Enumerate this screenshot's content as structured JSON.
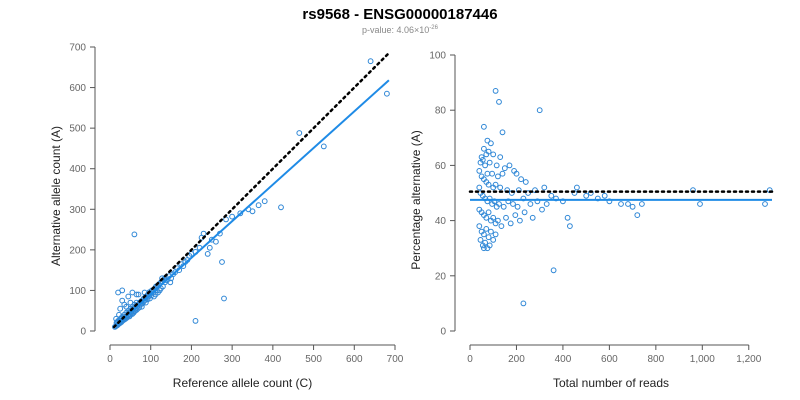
{
  "header": {
    "title": "rs9568 - ENSG00000187446",
    "pvalue_prefix": "p-value: 4.06×10",
    "pvalue_exponent": "-26"
  },
  "colors": {
    "points": "#2f87d6",
    "fit_line": "#1f8be6",
    "reference_line": "#000000"
  },
  "chart_data": [
    {
      "type": "scatter",
      "title": "",
      "xlabel": "Reference allele count (C)",
      "ylabel": "Alternative allele count (A)",
      "xlim": [
        0,
        700
      ],
      "ylim": [
        0,
        700
      ],
      "xticks": [
        0,
        100,
        200,
        300,
        400,
        500,
        600,
        700
      ],
      "yticks": [
        0,
        100,
        200,
        300,
        400,
        500,
        600,
        700
      ],
      "xtick_labels": [
        "0",
        "100",
        "200",
        "300",
        "400",
        "500",
        "600",
        "700"
      ],
      "ytick_labels": [
        "0",
        "100",
        "200",
        "300",
        "400",
        "500",
        "600",
        "700"
      ],
      "grid": false,
      "lines": [
        {
          "kind": "reference",
          "style": "dotted",
          "x": [
            10,
            685
          ],
          "y": [
            10,
            685
          ]
        },
        {
          "kind": "fit",
          "style": "solid",
          "x": [
            10,
            685
          ],
          "y": [
            9,
            618
          ]
        }
      ],
      "points": [
        [
          640,
          665
        ],
        [
          680,
          585
        ],
        [
          465,
          488
        ],
        [
          525,
          455
        ],
        [
          420,
          305
        ],
        [
          380,
          320
        ],
        [
          365,
          310
        ],
        [
          350,
          295
        ],
        [
          340,
          300
        ],
        [
          320,
          290
        ],
        [
          300,
          282
        ],
        [
          285,
          275
        ],
        [
          270,
          240
        ],
        [
          280,
          80
        ],
        [
          275,
          170
        ],
        [
          260,
          220
        ],
        [
          250,
          225
        ],
        [
          245,
          205
        ],
        [
          240,
          190
        ],
        [
          230,
          240
        ],
        [
          225,
          230
        ],
        [
          220,
          205
        ],
        [
          210,
          195
        ],
        [
          210,
          25
        ],
        [
          200,
          190
        ],
        [
          195,
          185
        ],
        [
          190,
          175
        ],
        [
          185,
          170
        ],
        [
          180,
          160
        ],
        [
          175,
          165
        ],
        [
          170,
          150
        ],
        [
          165,
          155
        ],
        [
          160,
          145
        ],
        [
          155,
          140
        ],
        [
          150,
          130
        ],
        [
          148,
          120
        ],
        [
          145,
          135
        ],
        [
          140,
          125
        ],
        [
          135,
          120
        ],
        [
          130,
          110
        ],
        [
          128,
          130
        ],
        [
          125,
          105
        ],
        [
          122,
          100
        ],
        [
          120,
          115
        ],
        [
          118,
          95
        ],
        [
          115,
          100
        ],
        [
          112,
          90
        ],
        [
          110,
          105
        ],
        [
          108,
          85
        ],
        [
          105,
          95
        ],
        [
          102,
          88
        ],
        [
          100,
          92
        ],
        [
          98,
          80
        ],
        [
          95,
          85
        ],
        [
          92,
          78
        ],
        [
          90,
          82
        ],
        [
          88,
          70
        ],
        [
          85,
          75
        ],
        [
          82,
          72
        ],
        [
          80,
          68
        ],
        [
          78,
          60
        ],
        [
          75,
          65
        ],
        [
          72,
          58
        ],
        [
          70,
          62
        ],
        [
          68,
          55
        ],
        [
          65,
          52
        ],
        [
          62,
          50
        ],
        [
          60,
          48
        ],
        [
          58,
          45
        ],
        [
          55,
          42
        ],
        [
          52,
          44
        ],
        [
          50,
          40
        ],
        [
          48,
          36
        ],
        [
          45,
          38
        ],
        [
          42,
          33
        ],
        [
          40,
          35
        ],
        [
          38,
          30
        ],
        [
          35,
          28
        ],
        [
          32,
          26
        ],
        [
          30,
          25
        ],
        [
          28,
          22
        ],
        [
          25,
          20
        ],
        [
          22,
          18
        ],
        [
          20,
          16
        ],
        [
          18,
          14
        ],
        [
          15,
          12
        ],
        [
          12,
          10
        ],
        [
          60,
          238
        ],
        [
          30,
          100
        ],
        [
          20,
          95
        ],
        [
          30,
          75
        ],
        [
          45,
          85
        ],
        [
          25,
          55
        ],
        [
          35,
          65
        ],
        [
          55,
          95
        ],
        [
          65,
          90
        ],
        [
          40,
          60
        ],
        [
          50,
          70
        ],
        [
          15,
          30
        ],
        [
          22,
          40
        ],
        [
          70,
          90
        ],
        [
          85,
          95
        ],
        [
          20,
          25
        ],
        [
          25,
          30
        ],
        [
          30,
          35
        ],
        [
          35,
          40
        ],
        [
          40,
          45
        ],
        [
          45,
          50
        ],
        [
          50,
          55
        ],
        [
          55,
          60
        ],
        [
          60,
          65
        ],
        [
          65,
          70
        ],
        [
          16,
          20
        ],
        [
          18,
          22
        ],
        [
          24,
          26
        ],
        [
          26,
          24
        ],
        [
          28,
          30
        ],
        [
          33,
          30
        ],
        [
          36,
          34
        ],
        [
          44,
          40
        ],
        [
          48,
          46
        ],
        [
          53,
          50
        ],
        [
          58,
          56
        ],
        [
          63,
          60
        ],
        [
          67,
          64
        ],
        [
          73,
          70
        ],
        [
          77,
          74
        ],
        [
          83,
          80
        ],
        [
          87,
          84
        ],
        [
          93,
          90
        ],
        [
          97,
          96
        ],
        [
          103,
          100
        ],
        [
          107,
          102
        ],
        [
          113,
          110
        ],
        [
          117,
          112
        ],
        [
          123,
          118
        ],
        [
          127,
          122
        ],
        [
          133,
          128
        ],
        [
          137,
          132
        ]
      ]
    },
    {
      "type": "scatter",
      "title": "",
      "xlabel": "Total number of reads",
      "ylabel": "Percentage alternative (A)",
      "xlim": [
        0,
        1300
      ],
      "ylim": [
        0,
        100
      ],
      "xticks": [
        0,
        200,
        400,
        600,
        800,
        1000,
        1200
      ],
      "yticks": [
        0,
        20,
        40,
        60,
        80,
        100
      ],
      "xtick_labels": [
        "0",
        "200",
        "400",
        "600",
        "800",
        "1,000",
        "1,200"
      ],
      "ytick_labels": [
        "0",
        "20",
        "40",
        "60",
        "80",
        "100"
      ],
      "grid": false,
      "lines": [
        {
          "kind": "reference",
          "style": "dotted",
          "x": [
            0,
            1300
          ],
          "y": [
            50.5,
            50.5
          ]
        },
        {
          "kind": "fit",
          "style": "solid",
          "x": [
            0,
            1300
          ],
          "y": [
            47.5,
            47.5
          ]
        }
      ],
      "points": [
        [
          110,
          87
        ],
        [
          300,
          80
        ],
        [
          125,
          83
        ],
        [
          60,
          74
        ],
        [
          140,
          72
        ],
        [
          75,
          69
        ],
        [
          90,
          68
        ],
        [
          60,
          66
        ],
        [
          70,
          64
        ],
        [
          80,
          65
        ],
        [
          50,
          63
        ],
        [
          100,
          64
        ],
        [
          130,
          63
        ],
        [
          45,
          61
        ],
        [
          55,
          62
        ],
        [
          65,
          60
        ],
        [
          85,
          61
        ],
        [
          115,
          60
        ],
        [
          150,
          59
        ],
        [
          170,
          60
        ],
        [
          190,
          58
        ],
        [
          40,
          58
        ],
        [
          75,
          57
        ],
        [
          95,
          57
        ],
        [
          120,
          56
        ],
        [
          140,
          57
        ],
        [
          200,
          57
        ],
        [
          220,
          55
        ],
        [
          240,
          54
        ],
        [
          50,
          56
        ],
        [
          60,
          55
        ],
        [
          70,
          54
        ],
        [
          80,
          53
        ],
        [
          100,
          52
        ],
        [
          110,
          53
        ],
        [
          130,
          52
        ],
        [
          160,
          51
        ],
        [
          180,
          50
        ],
        [
          210,
          51
        ],
        [
          250,
          50
        ],
        [
          280,
          51
        ],
        [
          320,
          52
        ],
        [
          350,
          49
        ],
        [
          40,
          52
        ],
        [
          45,
          50
        ],
        [
          55,
          49
        ],
        [
          65,
          48
        ],
        [
          75,
          47
        ],
        [
          85,
          48
        ],
        [
          95,
          46
        ],
        [
          105,
          47
        ],
        [
          115,
          45
        ],
        [
          125,
          46
        ],
        [
          145,
          45
        ],
        [
          165,
          47
        ],
        [
          185,
          46
        ],
        [
          205,
          45
        ],
        [
          230,
          48
        ],
        [
          260,
          46
        ],
        [
          290,
          47
        ],
        [
          330,
          46
        ],
        [
          370,
          48
        ],
        [
          400,
          47
        ],
        [
          450,
          50
        ],
        [
          500,
          49
        ],
        [
          550,
          48
        ],
        [
          600,
          47
        ],
        [
          650,
          46
        ],
        [
          700,
          45
        ],
        [
          720,
          42
        ],
        [
          40,
          44
        ],
        [
          50,
          43
        ],
        [
          60,
          42
        ],
        [
          70,
          41
        ],
        [
          80,
          43
        ],
        [
          90,
          40
        ],
        [
          100,
          41
        ],
        [
          110,
          39
        ],
        [
          120,
          40
        ],
        [
          135,
          38
        ],
        [
          155,
          41
        ],
        [
          175,
          39
        ],
        [
          195,
          42
        ],
        [
          215,
          40
        ],
        [
          235,
          43
        ],
        [
          270,
          41
        ],
        [
          310,
          44
        ],
        [
          420,
          41
        ],
        [
          430,
          38
        ],
        [
          40,
          38
        ],
        [
          50,
          36
        ],
        [
          60,
          35
        ],
        [
          70,
          37
        ],
        [
          80,
          34
        ],
        [
          90,
          36
        ],
        [
          100,
          33
        ],
        [
          110,
          35
        ],
        [
          45,
          33
        ],
        [
          55,
          31
        ],
        [
          65,
          32
        ],
        [
          75,
          30
        ],
        [
          85,
          31
        ],
        [
          60,
          30
        ],
        [
          360,
          22
        ],
        [
          230,
          10
        ],
        [
          960,
          51
        ],
        [
          1290,
          51
        ],
        [
          1270,
          46
        ],
        [
          990,
          46
        ],
        [
          460,
          52
        ],
        [
          520,
          50
        ],
        [
          580,
          49
        ],
        [
          680,
          46
        ],
        [
          740,
          46
        ]
      ]
    }
  ]
}
